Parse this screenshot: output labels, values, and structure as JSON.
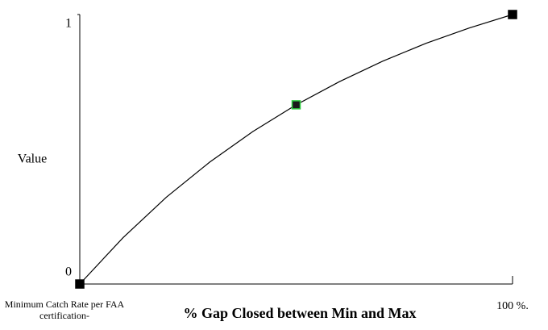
{
  "chart_data": {
    "type": "line",
    "x_label": "% Gap Closed between Min and Max",
    "y_label": "Value",
    "x": [
      0,
      10,
      20,
      30,
      40,
      50,
      60,
      70,
      80,
      90,
      100
    ],
    "series": [
      {
        "color": "#000000",
        "values": [
          0,
          0.172,
          0.322,
          0.452,
          0.566,
          0.665,
          0.751,
          0.827,
          0.893,
          0.95,
          1
        ]
      }
    ],
    "markers": [
      {
        "x": 0,
        "y": 0,
        "color": "#000000",
        "edge": "#000000"
      },
      {
        "x": 50,
        "y": 0.665,
        "color": "#1a1a1a",
        "edge": "#2ecc40"
      },
      {
        "x": 100,
        "y": 1,
        "color": "#000000",
        "edge": "#000000"
      }
    ],
    "xlim": [
      0,
      100
    ],
    "ylim": [
      0,
      1
    ],
    "xticks": [
      {
        "value": 0,
        "label": "Minimum Catch Rate per FAA certification-"
      },
      {
        "value": 100,
        "label": "100 %."
      }
    ],
    "yticks": [
      0,
      1
    ]
  }
}
